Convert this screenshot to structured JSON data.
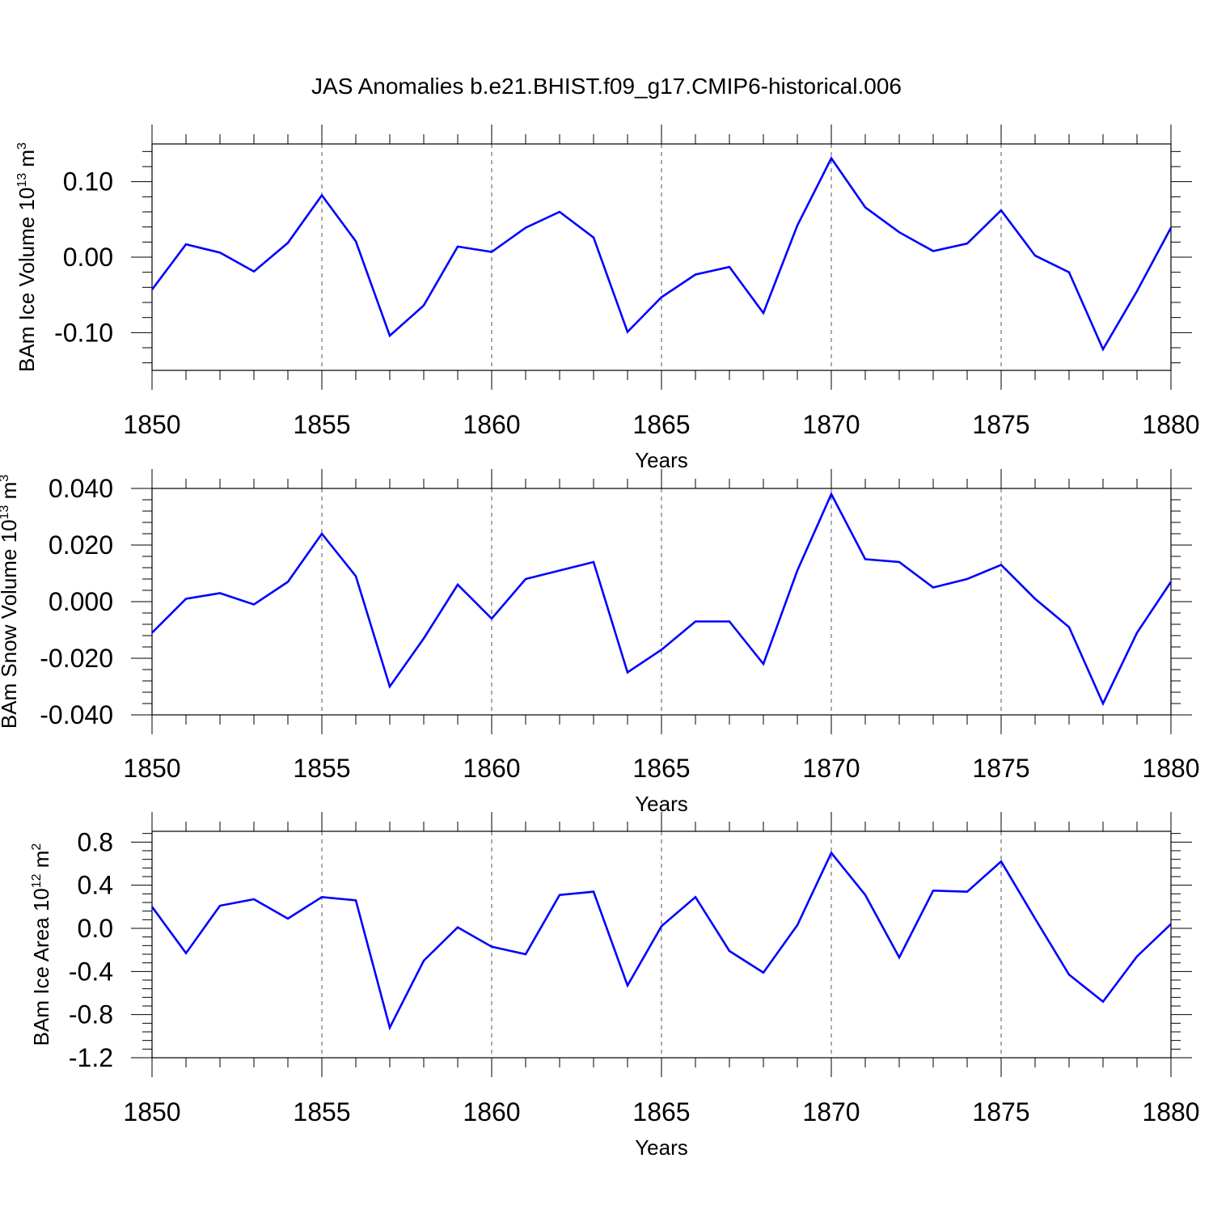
{
  "title": "JAS Anomalies b.e21.BHIST.f09_g17.CMIP6-historical.006",
  "chart_data": [
    {
      "type": "line",
      "ylabel": {
        "main": "BAm Ice Volume 10",
        "sup": "13",
        "unit": " m",
        "unit_sup": "3"
      },
      "xlabel": "Years",
      "xlim": [
        1850,
        1880
      ],
      "ylim": [
        -0.15,
        0.15
      ],
      "x_ticks": [
        "1850",
        "1855",
        "1860",
        "1865",
        "1870",
        "1875",
        "1880"
      ],
      "y_ticks": [
        {
          "v": 0.1,
          "label": "0.10"
        },
        {
          "v": 0.0,
          "label": "0.00"
        },
        {
          "v": -0.1,
          "label": "-0.10"
        }
      ],
      "color": "#0000ff",
      "grid": "vertical dashed at major ticks",
      "x": [
        1850,
        1851,
        1852,
        1853,
        1854,
        1855,
        1856,
        1857,
        1858,
        1859,
        1860,
        1861,
        1862,
        1863,
        1864,
        1865,
        1866,
        1867,
        1868,
        1869,
        1870,
        1871,
        1872,
        1873,
        1874,
        1875,
        1876,
        1877,
        1878,
        1879,
        1880
      ],
      "y": [
        -0.043,
        0.017,
        0.006,
        -0.019,
        0.019,
        0.082,
        0.021,
        -0.104,
        -0.064,
        0.014,
        0.007,
        0.039,
        0.06,
        0.026,
        -0.099,
        -0.053,
        -0.023,
        -0.013,
        -0.074,
        0.042,
        0.131,
        0.066,
        0.033,
        0.008,
        0.018,
        0.062,
        0.002,
        -0.02,
        -0.122,
        -0.045,
        0.039
      ]
    },
    {
      "type": "line",
      "ylabel": {
        "main": "BAm Snow Volume 10",
        "sup": "13",
        "unit": " m",
        "unit_sup": "3"
      },
      "xlabel": "Years",
      "xlim": [
        1850,
        1880
      ],
      "ylim": [
        -0.04,
        0.04
      ],
      "x_ticks": [
        "1850",
        "1855",
        "1860",
        "1865",
        "1870",
        "1875",
        "1880"
      ],
      "y_ticks": [
        {
          "v": 0.04,
          "label": "0.040"
        },
        {
          "v": 0.02,
          "label": "0.020"
        },
        {
          "v": 0.0,
          "label": "0.000"
        },
        {
          "v": -0.02,
          "label": "-0.020"
        },
        {
          "v": -0.04,
          "label": "-0.040"
        }
      ],
      "color": "#0000ff",
      "grid": "vertical dashed at major ticks",
      "x": [
        1850,
        1851,
        1852,
        1853,
        1854,
        1855,
        1856,
        1857,
        1858,
        1859,
        1860,
        1861,
        1862,
        1863,
        1864,
        1865,
        1866,
        1867,
        1868,
        1869,
        1870,
        1871,
        1872,
        1873,
        1874,
        1875,
        1876,
        1877,
        1878,
        1879,
        1880
      ],
      "y": [
        -0.011,
        0.001,
        0.003,
        -0.001,
        0.007,
        0.024,
        0.009,
        -0.03,
        -0.013,
        0.006,
        -0.006,
        0.008,
        0.011,
        0.014,
        -0.025,
        -0.017,
        -0.007,
        -0.007,
        -0.022,
        0.011,
        0.038,
        0.015,
        0.014,
        0.005,
        0.008,
        0.013,
        0.001,
        -0.009,
        -0.036,
        -0.011,
        0.007
      ]
    },
    {
      "type": "line",
      "ylabel": {
        "main": "BAm Ice Area 10",
        "sup": "12",
        "unit": " m",
        "unit_sup": "2"
      },
      "xlabel": "Years",
      "xlim": [
        1850,
        1880
      ],
      "ylim": [
        -1.2,
        0.9
      ],
      "x_ticks": [
        "1850",
        "1855",
        "1860",
        "1865",
        "1870",
        "1875",
        "1880"
      ],
      "y_ticks": [
        {
          "v": 0.8,
          "label": "0.8"
        },
        {
          "v": 0.4,
          "label": "0.4"
        },
        {
          "v": 0.0,
          "label": "0.0"
        },
        {
          "v": -0.4,
          "label": "-0.4"
        },
        {
          "v": -0.8,
          "label": "-0.8"
        },
        {
          "v": -1.2,
          "label": "-1.2"
        }
      ],
      "color": "#0000ff",
      "grid": "vertical dashed at major ticks",
      "x": [
        1850,
        1851,
        1852,
        1853,
        1854,
        1855,
        1856,
        1857,
        1858,
        1859,
        1860,
        1861,
        1862,
        1863,
        1864,
        1865,
        1866,
        1867,
        1868,
        1869,
        1870,
        1871,
        1872,
        1873,
        1874,
        1875,
        1876,
        1877,
        1878,
        1879,
        1880
      ],
      "y": [
        0.2,
        -0.23,
        0.21,
        0.27,
        0.09,
        0.29,
        0.26,
        -0.92,
        -0.3,
        0.01,
        -0.17,
        -0.24,
        0.31,
        0.34,
        -0.53,
        0.02,
        0.29,
        -0.21,
        -0.41,
        0.03,
        0.7,
        0.31,
        -0.27,
        0.35,
        0.34,
        0.62,
        0.09,
        -0.43,
        -0.68,
        -0.26,
        0.04
      ]
    }
  ]
}
